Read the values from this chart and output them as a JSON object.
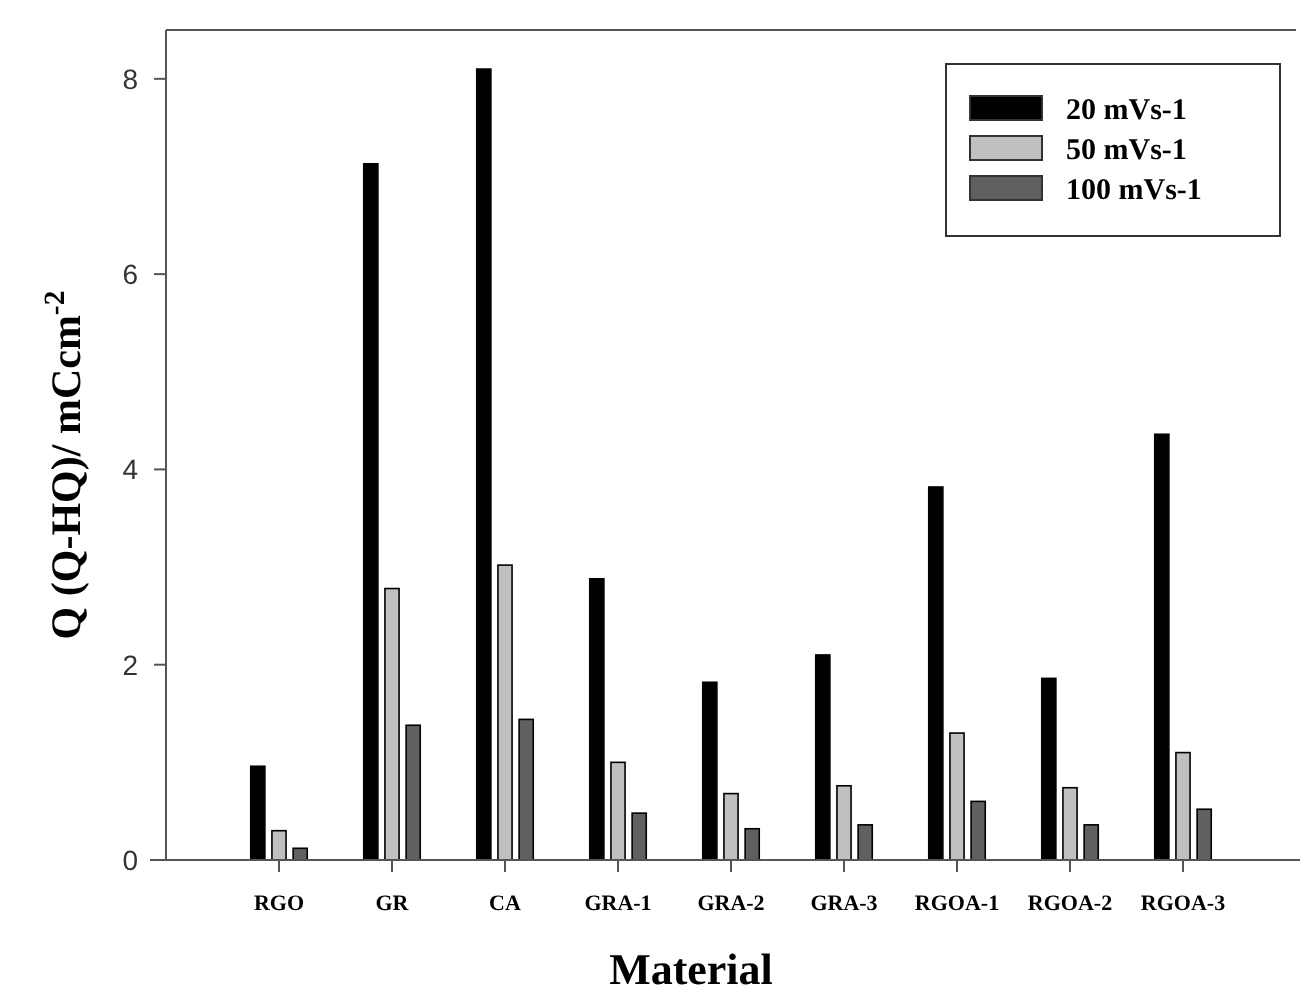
{
  "chart_data": {
    "type": "bar",
    "xlabel": "Material",
    "ylabel": "Q (Q-HQ)/ mCcm$^{-2}$",
    "categories": [
      "RGO",
      "GR",
      "CA",
      "GRA-1",
      "GRA-2",
      "GRA-3",
      "RGOA-1",
      "RGOA-2",
      "RGOA-3"
    ],
    "series": [
      {
        "name": "20 mVs-1",
        "color": "#000000",
        "values": [
          0.96,
          7.13,
          8.1,
          2.88,
          1.82,
          2.1,
          3.82,
          1.86,
          4.36
        ]
      },
      {
        "name": "50 mVs-1",
        "color": "#c0c0c0",
        "values": [
          0.3,
          2.78,
          3.02,
          1.0,
          0.68,
          0.76,
          1.3,
          0.74,
          1.1
        ]
      },
      {
        "name": "100 mVs-1",
        "color": "#606060",
        "values": [
          0.12,
          1.38,
          1.44,
          0.48,
          0.32,
          0.36,
          0.6,
          0.36,
          0.52
        ]
      }
    ],
    "ylim": [
      0,
      8.5
    ],
    "yticks": [
      0,
      2,
      4,
      6,
      8
    ],
    "grid": false,
    "legend": "top right"
  }
}
